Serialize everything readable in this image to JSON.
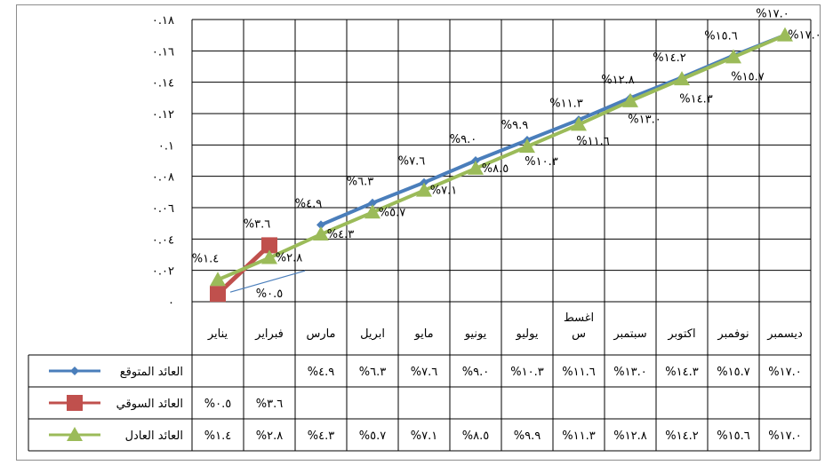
{
  "chart_data": {
    "type": "line",
    "categories": [
      "يناير",
      "فبراير",
      "مارس",
      "ابريل",
      "مايو",
      "يونيو",
      "يوليو",
      "اغسطس",
      "سبتمبر",
      "اكتوبر",
      "نوفمبر",
      "ديسمبر"
    ],
    "category_lines": [
      [
        "يناير"
      ],
      [
        "فبراير"
      ],
      [
        "مارس"
      ],
      [
        "ابريل"
      ],
      [
        "مايو"
      ],
      [
        "يونيو"
      ],
      [
        "يوليو"
      ],
      [
        "اغسط",
        "س"
      ],
      [
        "سبتمبر"
      ],
      [
        "اكتوبر"
      ],
      [
        "نوفمبر"
      ],
      [
        "ديسمبر"
      ]
    ],
    "y_ticks": [
      "٠",
      "٠.٠٢",
      "٠.٠٤",
      "٠.٠٦",
      "٠.٠٨",
      "٠.١",
      "٠.١٢",
      "٠.١٤",
      "٠.١٦",
      "٠.١٨"
    ],
    "ylim": [
      0,
      0.18
    ],
    "grid": true,
    "legend": "data-table",
    "series": [
      {
        "name": "العائد المتوقع",
        "color": "#4a7ebb",
        "marker": "diamond",
        "values": [
          null,
          null,
          0.049,
          0.063,
          0.076,
          0.09,
          0.103,
          0.116,
          0.13,
          0.143,
          0.157,
          0.17
        ],
        "table_labels": [
          "",
          "",
          "%٤.٩",
          "%٦.٣",
          "%٧.٦",
          "%٩.٠",
          "%١٠.٣",
          "%١١.٦",
          "%١٣.٠",
          "%١٤.٣",
          "%١٥.٧",
          "%١٧.٠"
        ]
      },
      {
        "name": "العائد السوقي",
        "color": "#c0504d",
        "marker": "square",
        "values": [
          0.005,
          0.036,
          null,
          null,
          null,
          null,
          null,
          null,
          null,
          null,
          null,
          null
        ],
        "table_labels": [
          "%٠.٥",
          "%٣.٦",
          "",
          "",
          "",
          "",
          "",
          "",
          "",
          "",
          "",
          ""
        ]
      },
      {
        "name": "العائد العادل",
        "color": "#9bbb59",
        "marker": "triangle",
        "values": [
          0.014,
          0.028,
          0.043,
          0.057,
          0.071,
          0.085,
          0.099,
          0.113,
          0.128,
          0.142,
          0.156,
          0.17
        ],
        "table_labels": [
          "%١.٤",
          "%٢.٨",
          "%٤.٣",
          "%٥.٧",
          "%٧.١",
          "%٨.٥",
          "%٩.٩",
          "%١١.٣",
          "%١٢.٨",
          "%١٤.٢",
          "%١٥.٦",
          "%١٧.٠"
        ]
      }
    ],
    "annotations": [
      {
        "text": "%١.٤",
        "series": 2,
        "index": 0,
        "side": "above"
      },
      {
        "text": "%٠.٥",
        "series": 1,
        "index": 0,
        "side": "below"
      },
      {
        "text": "%٣.٦",
        "series": 1,
        "index": 1,
        "side": "above"
      },
      {
        "text": "%٢.٨",
        "series": 2,
        "index": 1,
        "side": "right"
      },
      {
        "text": "%٤.٩",
        "series": 0,
        "index": 2,
        "side": "above"
      },
      {
        "text": "%٤.٣",
        "series": 2,
        "index": 2,
        "side": "right"
      },
      {
        "text": "%٦.٣",
        "series": 0,
        "index": 3,
        "side": "above"
      },
      {
        "text": "%٥.٧",
        "series": 2,
        "index": 3,
        "side": "right"
      },
      {
        "text": "%٧.٦",
        "series": 0,
        "index": 4,
        "side": "above"
      },
      {
        "text": "%٧.١",
        "series": 2,
        "index": 4,
        "side": "right"
      },
      {
        "text": "%٩.٠",
        "series": 0,
        "index": 5,
        "side": "above"
      },
      {
        "text": "%٨.٥",
        "series": 2,
        "index": 5,
        "side": "right"
      },
      {
        "text": "%٩.٩",
        "series": 2,
        "index": 6,
        "side": "above"
      },
      {
        "text": "%١١.٣",
        "series": 2,
        "index": 7,
        "side": "above"
      },
      {
        "text": "%١٠.٣",
        "series": 0,
        "index": 6,
        "side": "below"
      },
      {
        "text": "%١١.٦",
        "series": 0,
        "index": 7,
        "side": "below"
      },
      {
        "text": "%١٢.٨",
        "series": 2,
        "index": 8,
        "side": "above"
      },
      {
        "text": "%١٣.٠",
        "series": 0,
        "index": 8,
        "side": "below"
      },
      {
        "text": "%١٤.٢",
        "series": 2,
        "index": 9,
        "side": "above"
      },
      {
        "text": "%١٤.٣",
        "series": 0,
        "index": 9,
        "side": "below"
      },
      {
        "text": "%١٥.٦",
        "series": 2,
        "index": 10,
        "side": "above"
      },
      {
        "text": "%١٥.٧",
        "series": 0,
        "index": 10,
        "side": "below"
      },
      {
        "text": "%١٧.٠",
        "series": 2,
        "index": 11,
        "side": "above"
      },
      {
        "text": "%١٧.٠",
        "series": 0,
        "index": 11,
        "side": "right"
      }
    ]
  }
}
